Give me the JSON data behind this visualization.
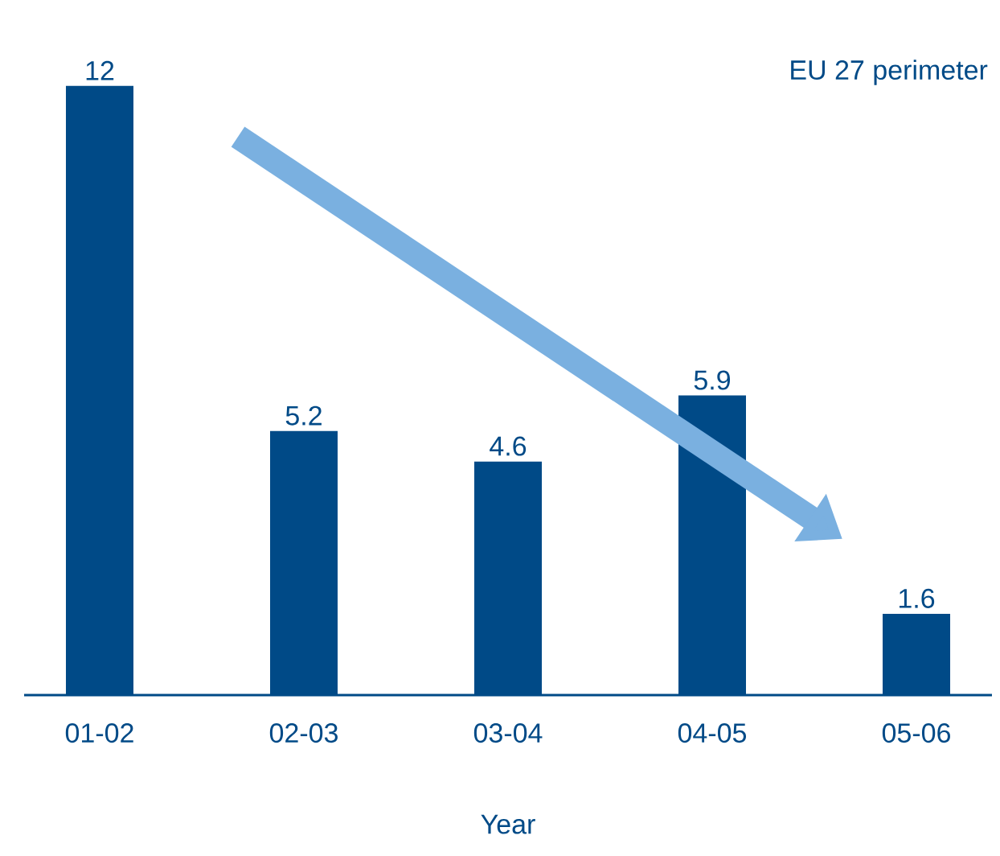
{
  "chart_data": {
    "type": "bar",
    "xlabel": "Year",
    "categories": [
      "01-02",
      "02-03",
      "03-04",
      "04-05",
      "05-06"
    ],
    "values": [
      12,
      5.2,
      4.6,
      5.9,
      1.6
    ],
    "color": "#004a87",
    "data_labels": true,
    "annotations": [
      "EU 27 perimeter"
    ]
  }
}
